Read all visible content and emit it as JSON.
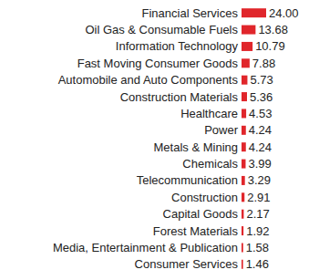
{
  "chart_data": {
    "type": "bar",
    "orientation": "horizontal",
    "categories": [
      "Financial Services",
      "Oil Gas & Consumable Fuels",
      "Information Technology",
      "Fast Moving Consumer Goods",
      "Automobile and Auto Components",
      "Construction Materials",
      "Healthcare",
      "Power",
      "Metals & Mining",
      "Chemicals",
      "Telecommunication",
      "Construction",
      "Capital Goods",
      "Forest Materials",
      "Media, Entertainment & Publication",
      "Consumer Services"
    ],
    "values": [
      24.0,
      13.68,
      10.79,
      7.88,
      5.73,
      5.36,
      4.53,
      4.24,
      4.24,
      3.99,
      3.29,
      2.91,
      2.17,
      1.92,
      1.58,
      1.46
    ],
    "value_labels": [
      "24.00",
      "13.68",
      "10.79",
      "7.88",
      "5.73",
      "5.36",
      "4.53",
      "4.24",
      "4.24",
      "3.99",
      "3.29",
      "2.91",
      "2.17",
      "1.92",
      "1.58",
      "1.46"
    ],
    "color": "#e0262b",
    "xlim": [
      0,
      24
    ],
    "data_labels": true,
    "tick_labels": "y",
    "grid": false
  }
}
